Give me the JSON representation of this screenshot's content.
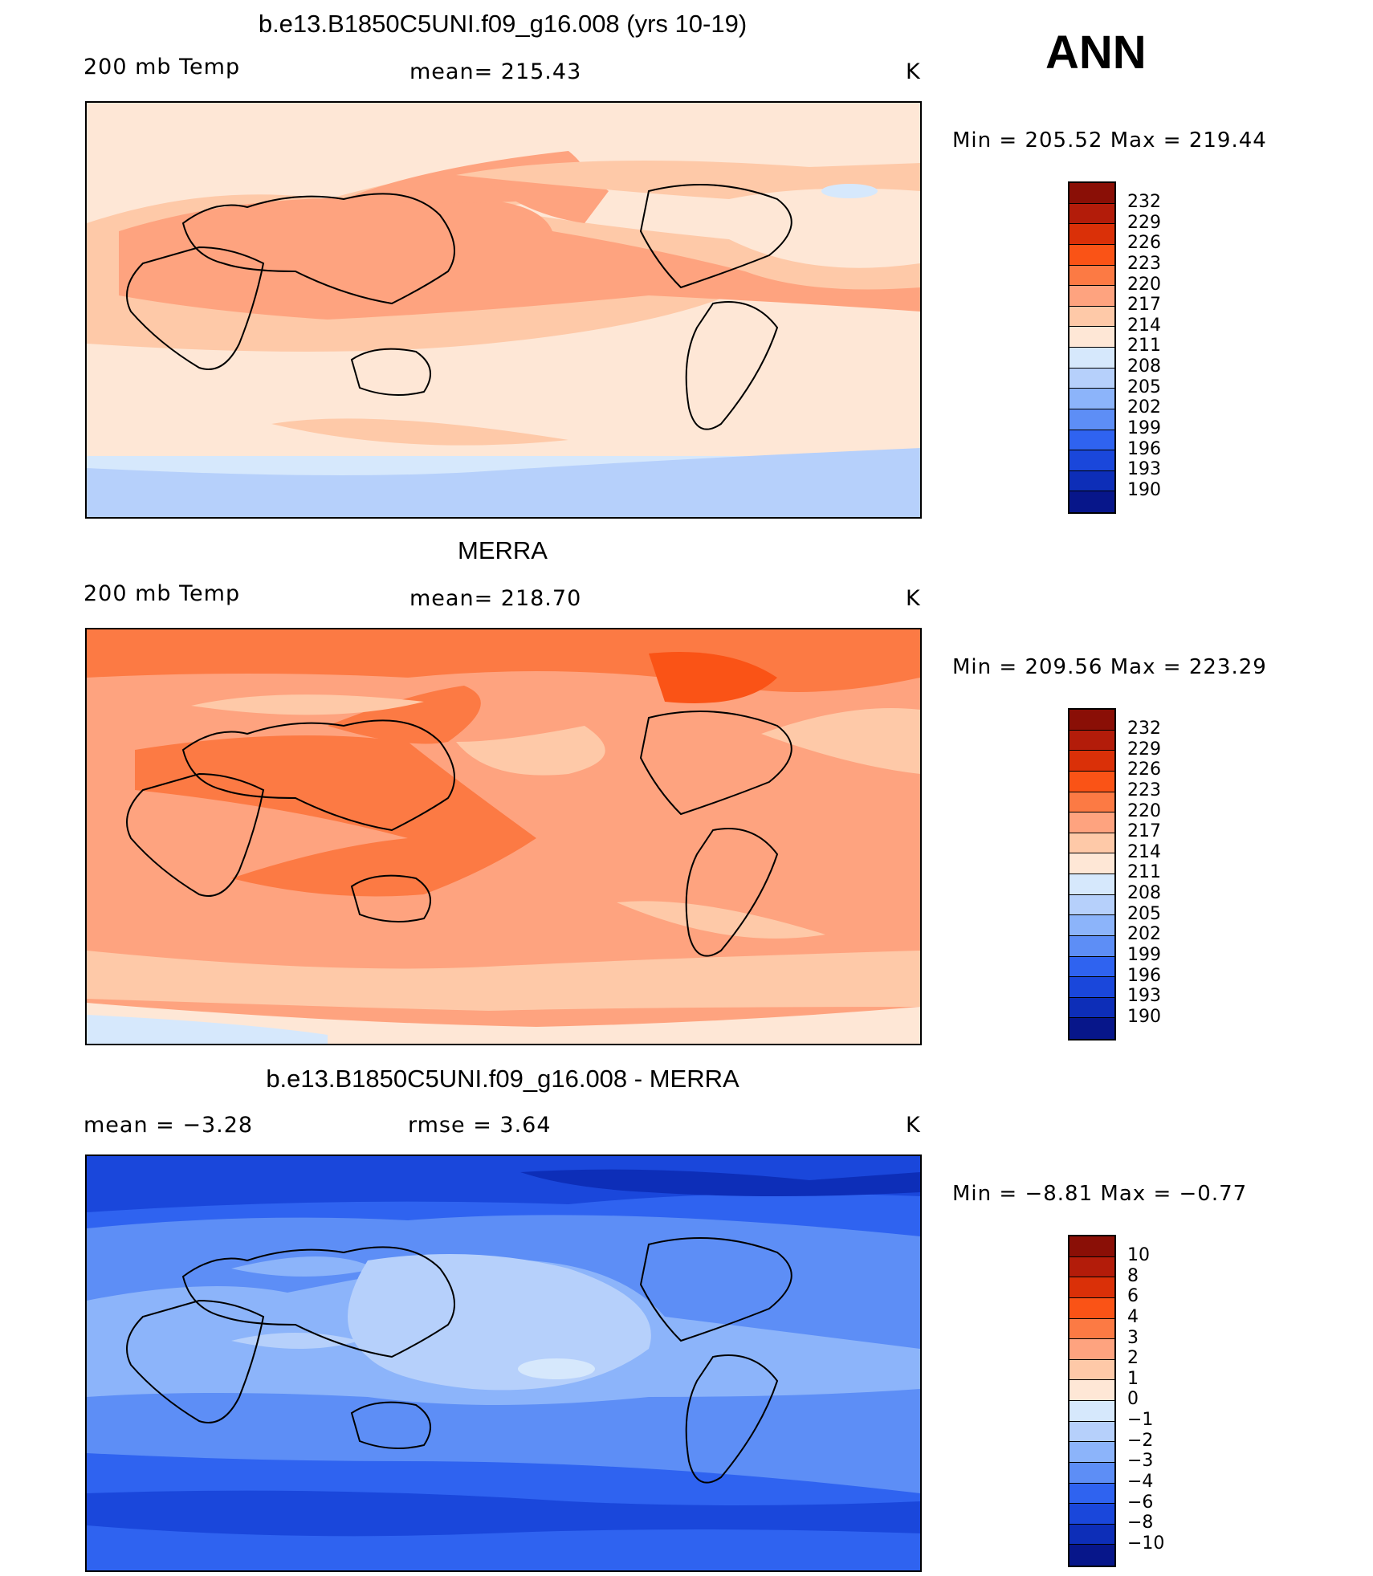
{
  "season": "ANN",
  "panels": [
    {
      "title": "b.e13.B1850C5UNI.f09_g16.008 (yrs 10-19)",
      "variable": "200 mb Temp",
      "stat": "mean=  215.43",
      "units": "K",
      "min_label": "Min",
      "min_value": "205.52",
      "max_label": "Max",
      "max_value": "219.44",
      "palette": "abs"
    },
    {
      "title": "MERRA",
      "variable": "200 mb Temp",
      "stat": "mean=  218.70",
      "units": "K",
      "min_label": "Min",
      "min_value": "209.56",
      "max_label": "Max",
      "max_value": "223.29",
      "palette": "abs"
    },
    {
      "title": "b.e13.B1850C5UNI.f09_g16.008 - MERRA",
      "mean_text": "mean =    −3.28",
      "rmse_text": "rmse =     3.64",
      "units": "K",
      "min_label": "Min",
      "min_value": "−8.81",
      "max_label": "Max",
      "max_value": "−0.77",
      "palette": "diff"
    }
  ],
  "colorbars": {
    "abs": {
      "labels": [
        "232",
        "229",
        "226",
        "223",
        "220",
        "217",
        "214",
        "211",
        "208",
        "205",
        "202",
        "199",
        "196",
        "193",
        "190"
      ],
      "colors": [
        "#8a0f06",
        "#b31c0a",
        "#da3008",
        "#fa5316",
        "#fc7a44",
        "#fea37f",
        "#fec9a8",
        "#fee7d6",
        "#d6e8fc",
        "#b6d0fb",
        "#8cb4fa",
        "#5d8ef6",
        "#2f63f0",
        "#1a47db",
        "#0d2eb8",
        "#07168a"
      ]
    },
    "diff": {
      "labels": [
        "10",
        "8",
        "6",
        "4",
        "3",
        "2",
        "1",
        "0",
        "−1",
        "−2",
        "−3",
        "−4",
        "−6",
        "−8",
        "−10"
      ],
      "colors": [
        "#8a0f06",
        "#b31c0a",
        "#da3008",
        "#fa5316",
        "#fc7a44",
        "#fea37f",
        "#fec9a8",
        "#fee7d6",
        "#d6e8fc",
        "#b6d0fb",
        "#8cb4fa",
        "#5d8ef6",
        "#2f63f0",
        "#1a47db",
        "#0d2eb8",
        "#07168a"
      ]
    }
  }
}
